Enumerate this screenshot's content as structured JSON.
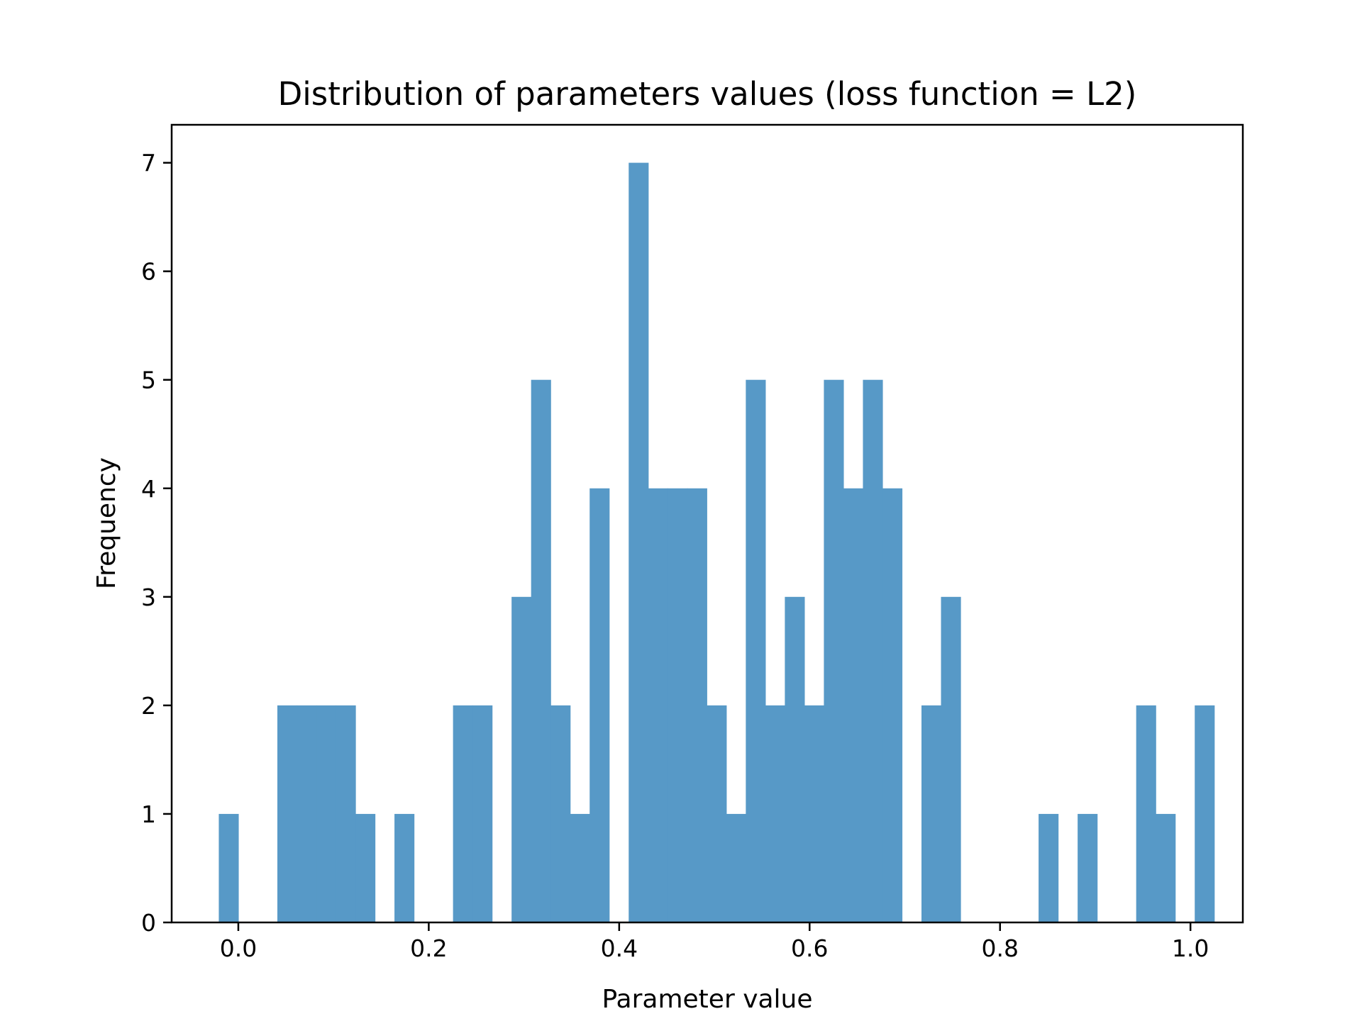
{
  "chart_data": {
    "type": "bar",
    "title": "Distribution of parameters values (loss function = L2)",
    "xlabel": "Parameter value",
    "ylabel": "Frequency",
    "xlim": [
      -0.07,
      1.055
    ],
    "ylim": [
      0,
      7.35
    ],
    "xticks": [
      {
        "value": 0.0,
        "label": "0.0"
      },
      {
        "value": 0.2,
        "label": "0.2"
      },
      {
        "value": 0.4,
        "label": "0.4"
      },
      {
        "value": 0.6,
        "label": "0.6"
      },
      {
        "value": 0.8,
        "label": "0.8"
      },
      {
        "value": 1.0,
        "label": "1.0"
      }
    ],
    "yticks": [
      {
        "value": 0,
        "label": "0"
      },
      {
        "value": 1,
        "label": "1"
      },
      {
        "value": 2,
        "label": "2"
      },
      {
        "value": 3,
        "label": "3"
      },
      {
        "value": 4,
        "label": "4"
      },
      {
        "value": 5,
        "label": "5"
      },
      {
        "value": 6,
        "label": "6"
      },
      {
        "value": 7,
        "label": "7"
      }
    ],
    "bar_color": "#5799c7",
    "bins": {
      "start": -0.0205,
      "width": 0.0205,
      "counts": [
        1,
        0,
        0,
        2,
        2,
        2,
        2,
        1,
        0,
        1,
        0,
        0,
        2,
        2,
        0,
        3,
        5,
        2,
        1,
        4,
        0,
        7,
        4,
        4,
        4,
        2,
        1,
        5,
        2,
        3,
        2,
        5,
        4,
        5,
        4,
        0,
        2,
        3,
        0,
        0,
        0,
        0,
        1,
        0,
        1,
        0,
        0,
        2,
        1,
        0,
        2
      ]
    }
  }
}
